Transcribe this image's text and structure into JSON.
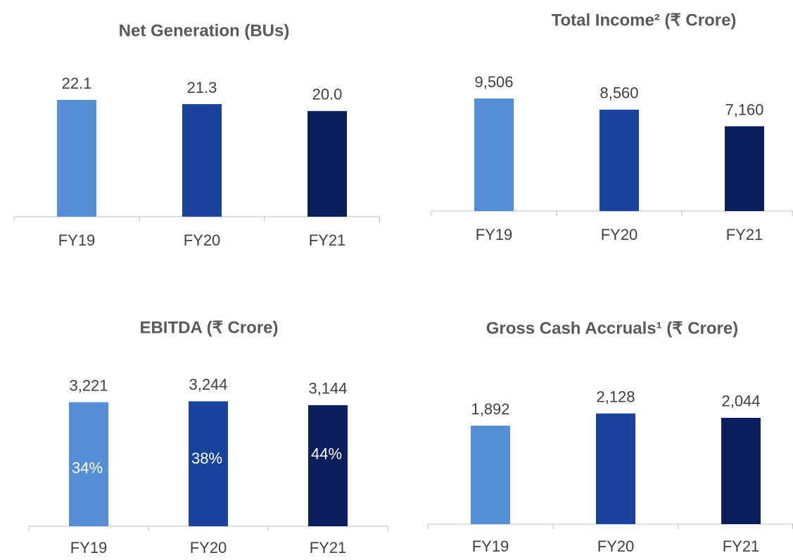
{
  "chart_data": [
    {
      "type": "bar",
      "title": "Net Generation (BUs)",
      "categories": [
        "FY19",
        "FY20",
        "FY21"
      ],
      "values": [
        22.1,
        21.3,
        20.0
      ],
      "value_labels": [
        "22.1",
        "21.3",
        "20.0"
      ],
      "colors": [
        "#558ed5",
        "#1a449c",
        "#0b1f5c"
      ],
      "ylim": [
        0,
        27.7
      ]
    },
    {
      "type": "bar",
      "title": "Total Income² (₹ Crore)",
      "categories": [
        "FY19",
        "FY20",
        "FY21"
      ],
      "values": [
        9506,
        8560,
        7160
      ],
      "value_labels": [
        "9,506",
        "8,560",
        "7,160"
      ],
      "colors": [
        "#558ed5",
        "#1a449c",
        "#0b1f5c"
      ],
      "ylim": [
        0,
        12000
      ]
    },
    {
      "type": "bar",
      "title": "EBITDA (₹ Crore)",
      "categories": [
        "FY19",
        "FY20",
        "FY21"
      ],
      "values": [
        3221,
        3244,
        3144
      ],
      "value_labels": [
        "3,221",
        "3,244",
        "3,144"
      ],
      "margin": {
        "values": [
          34,
          38,
          44
        ],
        "value_labels": [
          "34%",
          "38%",
          "44%"
        ]
      },
      "colors": [
        "#558ed5",
        "#1a449c",
        "#0b1f5c"
      ],
      "ylim": [
        0,
        3800
      ]
    },
    {
      "type": "bar",
      "title": "Gross Cash Accruals¹ (₹ Crore)",
      "categories": [
        "FY19",
        "FY20",
        "FY21"
      ],
      "values": [
        1892,
        2128,
        2044
      ],
      "value_labels": [
        "1,892",
        "2,128",
        "2,044"
      ],
      "colors": [
        "#558ed5",
        "#1a449c",
        "#0b1f5c"
      ],
      "ylim": [
        0,
        2800
      ]
    }
  ]
}
